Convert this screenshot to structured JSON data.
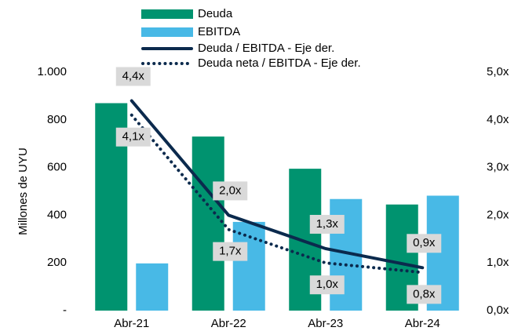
{
  "chart_data": {
    "type": "bar",
    "y_label": "Millones de UYU",
    "categories": [
      "Abr-21",
      "Abr-22",
      "Abr-23",
      "Abr-24"
    ],
    "series": [
      {
        "name": "Deuda",
        "type": "bar",
        "color": "#00936f",
        "values": [
          870,
          730,
          595,
          445
        ]
      },
      {
        "name": "EBITDA",
        "type": "bar",
        "color": "#48b9e6",
        "values": [
          198,
          372,
          468,
          482
        ]
      },
      {
        "name": "Deuda / EBITDA - Eje der.",
        "type": "line",
        "style": "solid",
        "axis": "y2",
        "color": "#0b2a4d",
        "values": [
          4.4,
          2.0,
          1.3,
          0.9
        ],
        "value_labels": [
          "4,4x",
          "2,0x",
          "1,3x",
          "0,9x"
        ],
        "label_position": "above"
      },
      {
        "name": "Deuda neta / EBITDA - Eje der.",
        "type": "line",
        "style": "dotted",
        "axis": "y2",
        "color": "#0b2a4d",
        "values": [
          4.1,
          1.7,
          1.0,
          0.8
        ],
        "value_labels": [
          "4,1x",
          "1,7x",
          "1,0x",
          "0,8x"
        ],
        "label_position": "below"
      }
    ],
    "ylim": [
      0,
      1000
    ],
    "yticks": [
      {
        "value": 0,
        "label": "-"
      },
      200,
      400,
      600,
      800,
      {
        "value": 1000,
        "label": "1.000"
      }
    ],
    "y2lim": [
      0,
      5
    ],
    "y2ticks": [
      {
        "value": 0,
        "label": "0,0x"
      },
      {
        "value": 1,
        "label": "1,0x"
      },
      {
        "value": 2,
        "label": "2,0x"
      },
      {
        "value": 3,
        "label": "3,0x"
      },
      {
        "value": 4,
        "label": "4,0x"
      },
      {
        "value": 5,
        "label": "5,0x"
      }
    ],
    "grid": false,
    "legend": "top"
  }
}
